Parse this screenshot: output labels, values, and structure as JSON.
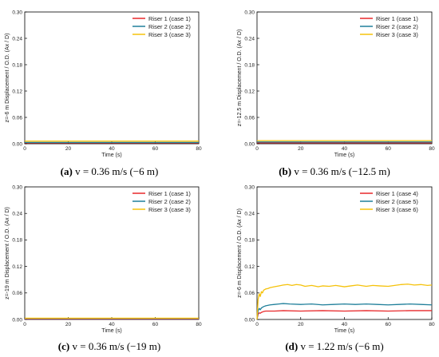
{
  "figure": {
    "colors": {
      "case_red": "#e8292b",
      "case_teal": "#1f7f9a",
      "case_yellow": "#f5c20b",
      "axis": "#000000"
    }
  },
  "chart_data": [
    {
      "type": "line",
      "caption_prefix": "(a)",
      "caption_rest": " v = 0.36 m/s (−6 m)",
      "xlabel": "Time (s)",
      "ylabel": "z=-6 m Displacement / O.D. (Ax / D)",
      "xlim": [
        0,
        80
      ],
      "ylim": [
        0,
        0.3
      ],
      "xticks": [
        "0",
        "20",
        "40",
        "60",
        "80"
      ],
      "yticks": [
        "0.00",
        "0.06",
        "0.12",
        "0.18",
        "0.24",
        "0.30"
      ],
      "legend_position": "top-right",
      "series": [
        {
          "name": "Riser 1 (case 1)",
          "color": "#e8292b",
          "x": [
            0,
            80
          ],
          "y": [
            0.002,
            0.002
          ]
        },
        {
          "name": "Riser 2 (case 2)",
          "color": "#1f7f9a",
          "x": [
            0,
            80
          ],
          "y": [
            0.003,
            0.003
          ]
        },
        {
          "name": "Riser 3 (case 3)",
          "color": "#f5c20b",
          "x": [
            0,
            80
          ],
          "y": [
            0.006,
            0.006
          ]
        }
      ]
    },
    {
      "type": "line",
      "caption_prefix": "(b)",
      "caption_rest": " v = 0.36 m/s (−12.5 m)",
      "xlabel": "Time (s)",
      "ylabel": "z=-12.5 m Displacement / O.D. (Ax / D)",
      "xlim": [
        0,
        80
      ],
      "ylim": [
        0,
        0.3
      ],
      "xticks": [
        "0",
        "20",
        "40",
        "60",
        "80"
      ],
      "yticks": [
        "0.00",
        "0.06",
        "0.12",
        "0.18",
        "0.24",
        "0.30"
      ],
      "legend_position": "top-right",
      "series": [
        {
          "name": "Riser 1 (case 1)",
          "color": "#e8292b",
          "x": [
            0,
            80
          ],
          "y": [
            0.002,
            0.002
          ]
        },
        {
          "name": "Riser 2 (case 2)",
          "color": "#1f7f9a",
          "x": [
            0,
            80
          ],
          "y": [
            0.004,
            0.004
          ]
        },
        {
          "name": "Riser 3 (case 3)",
          "color": "#f5c20b",
          "x": [
            0,
            80
          ],
          "y": [
            0.007,
            0.007
          ]
        }
      ]
    },
    {
      "type": "line",
      "caption_prefix": "(c)",
      "caption_rest": " v = 0.36 m/s (−19 m)",
      "xlabel": "Time (s)",
      "ylabel": "z=-19 m Displacement / O.D. (Ax / D)",
      "xlim": [
        0,
        80
      ],
      "ylim": [
        0,
        0.3
      ],
      "xticks": [
        "0",
        "20",
        "40",
        "60",
        "80"
      ],
      "yticks": [
        "0.00",
        "0.06",
        "0.12",
        "0.18",
        "0.24",
        "0.30"
      ],
      "legend_position": "top-right",
      "series": [
        {
          "name": "Riser 1 (case 1)",
          "color": "#e8292b",
          "x": [
            0,
            80
          ],
          "y": [
            0.001,
            0.001
          ]
        },
        {
          "name": "Riser 2 (case 2)",
          "color": "#1f7f9a",
          "x": [
            0,
            80
          ],
          "y": [
            0.002,
            0.002
          ]
        },
        {
          "name": "Riser 3 (case 3)",
          "color": "#f5c20b",
          "x": [
            0,
            80
          ],
          "y": [
            0.003,
            0.003
          ]
        }
      ]
    },
    {
      "type": "line",
      "caption_prefix": "(d)",
      "caption_rest": " v = 1.22 m/s (−6 m)",
      "xlabel": "Time (s)",
      "ylabel": "z=-6 m Displacement / O.D. (Ax / D)",
      "xlim": [
        0,
        80
      ],
      "ylim": [
        0,
        0.3
      ],
      "xticks": [
        "0",
        "20",
        "40",
        "60",
        "80"
      ],
      "yticks": [
        "0.00",
        "0.06",
        "0.12",
        "0.18",
        "0.24",
        "0.30"
      ],
      "legend_position": "top-left",
      "series": [
        {
          "name": "Riser 1 (case 4)",
          "color": "#e8292b",
          "x": [
            0,
            0.5,
            1,
            1.5,
            2,
            3,
            4,
            5,
            8,
            12,
            20,
            30,
            40,
            50,
            60,
            70,
            80
          ],
          "y": [
            0.0,
            0.012,
            0.015,
            0.014,
            0.016,
            0.018,
            0.019,
            0.019,
            0.019,
            0.02,
            0.019,
            0.02,
            0.019,
            0.02,
            0.019,
            0.02,
            0.02
          ]
        },
        {
          "name": "Riser 2 (case 5)",
          "color": "#1f7f9a",
          "x": [
            0,
            0.5,
            1,
            1.5,
            2,
            3,
            4,
            6,
            8,
            10,
            12,
            15,
            20,
            25,
            30,
            35,
            40,
            45,
            50,
            55,
            60,
            65,
            70,
            75,
            80
          ],
          "y": [
            0.0,
            0.02,
            0.025,
            0.022,
            0.026,
            0.029,
            0.031,
            0.033,
            0.034,
            0.035,
            0.036,
            0.035,
            0.034,
            0.035,
            0.033,
            0.034,
            0.035,
            0.034,
            0.035,
            0.034,
            0.033,
            0.034,
            0.035,
            0.034,
            0.033
          ]
        },
        {
          "name": "Riser 3 (case 6)",
          "color": "#f5c20b",
          "x": [
            0,
            0.5,
            1,
            1.5,
            2,
            2.5,
            3,
            4,
            5,
            6,
            8,
            10,
            12,
            14,
            16,
            18,
            20,
            22,
            25,
            28,
            30,
            33,
            36,
            40,
            43,
            46,
            50,
            53,
            56,
            60,
            63,
            66,
            69,
            72,
            75,
            78,
            80
          ],
          "y": [
            0.0,
            0.045,
            0.058,
            0.052,
            0.063,
            0.06,
            0.066,
            0.069,
            0.07,
            0.072,
            0.074,
            0.076,
            0.078,
            0.079,
            0.077,
            0.079,
            0.078,
            0.075,
            0.077,
            0.074,
            0.076,
            0.075,
            0.077,
            0.074,
            0.076,
            0.078,
            0.075,
            0.077,
            0.076,
            0.075,
            0.077,
            0.079,
            0.08,
            0.078,
            0.079,
            0.077,
            0.078
          ]
        }
      ]
    }
  ]
}
